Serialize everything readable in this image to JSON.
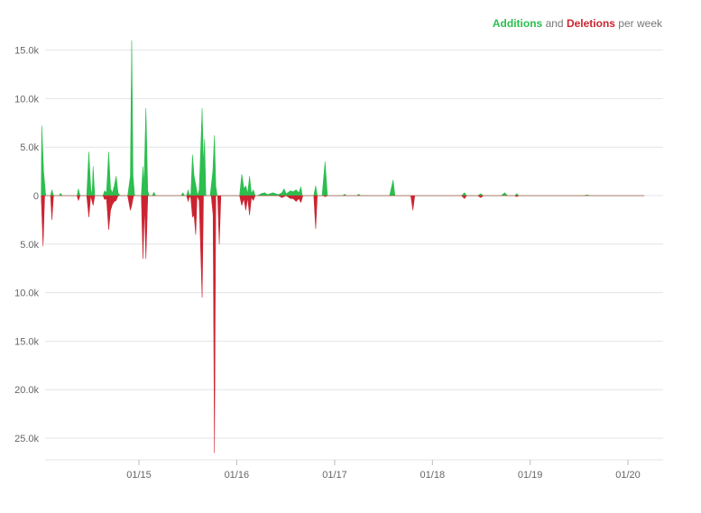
{
  "legend": {
    "additions_label": "Additions",
    "and_label": "and",
    "deletions_label": "Deletions",
    "suffix_label": "per week"
  },
  "colors": {
    "additions": "#2cbe4e",
    "deletions": "#cb2431",
    "grid": "#e1e4e8",
    "tick_text": "#666666"
  },
  "chart_data": {
    "type": "area",
    "title": "",
    "xlabel": "",
    "ylabel": "",
    "grid": true,
    "legend_position": "top-right",
    "x_range": [
      "2014-01-01",
      "2020-03-01"
    ],
    "y_range": [
      -27000,
      16000
    ],
    "y_ticks": [
      {
        "value": 15000,
        "label": "15.0k"
      },
      {
        "value": 10000,
        "label": "10.0k"
      },
      {
        "value": 5000,
        "label": "5.0k"
      },
      {
        "value": 0,
        "label": "0"
      },
      {
        "value": -5000,
        "label": "5.0k"
      },
      {
        "value": -10000,
        "label": "10.0k"
      },
      {
        "value": -15000,
        "label": "15.0k"
      },
      {
        "value": -20000,
        "label": "20.0k"
      },
      {
        "value": -25000,
        "label": "25.0k"
      }
    ],
    "x_ticks": [
      {
        "value": "2015-01-01",
        "label": "01/15"
      },
      {
        "value": "2016-01-01",
        "label": "01/16"
      },
      {
        "value": "2017-01-01",
        "label": "01/17"
      },
      {
        "value": "2018-01-01",
        "label": "01/18"
      },
      {
        "value": "2019-01-01",
        "label": "01/19"
      },
      {
        "value": "2020-01-01",
        "label": "01/20"
      }
    ],
    "series": [
      {
        "name": "Additions",
        "points": [
          [
            "2014-01-01",
            0
          ],
          [
            "2014-01-03",
            7200
          ],
          [
            "2014-01-10",
            2500
          ],
          [
            "2014-01-18",
            0
          ],
          [
            "2014-02-05",
            0
          ],
          [
            "2014-02-10",
            600
          ],
          [
            "2014-02-16",
            0
          ],
          [
            "2014-03-10",
            0
          ],
          [
            "2014-03-14",
            250
          ],
          [
            "2014-03-20",
            0
          ],
          [
            "2014-05-15",
            0
          ],
          [
            "2014-05-20",
            700
          ],
          [
            "2014-05-26",
            0
          ],
          [
            "2014-06-20",
            0
          ],
          [
            "2014-06-28",
            4500
          ],
          [
            "2014-07-05",
            800
          ],
          [
            "2014-07-10",
            0
          ],
          [
            "2014-07-14",
            3000
          ],
          [
            "2014-07-20",
            0
          ],
          [
            "2014-08-20",
            0
          ],
          [
            "2014-08-26",
            500
          ],
          [
            "2014-09-02",
            300
          ],
          [
            "2014-09-10",
            4500
          ],
          [
            "2014-09-17",
            700
          ],
          [
            "2014-09-24",
            300
          ],
          [
            "2014-10-01",
            1000
          ],
          [
            "2014-10-08",
            2000
          ],
          [
            "2014-10-15",
            300
          ],
          [
            "2014-10-22",
            0
          ],
          [
            "2014-11-20",
            0
          ],
          [
            "2014-11-30",
            2000
          ],
          [
            "2014-12-05",
            16000
          ],
          [
            "2014-12-10",
            2000
          ],
          [
            "2014-12-16",
            0
          ],
          [
            "2015-01-10",
            0
          ],
          [
            "2015-01-16",
            3000
          ],
          [
            "2015-01-20",
            1000
          ],
          [
            "2015-01-27",
            9000
          ],
          [
            "2015-02-03",
            500
          ],
          [
            "2015-02-08",
            0
          ],
          [
            "2015-02-20",
            0
          ],
          [
            "2015-02-26",
            350
          ],
          [
            "2015-03-04",
            0
          ],
          [
            "2015-06-08",
            0
          ],
          [
            "2015-06-14",
            300
          ],
          [
            "2015-06-20",
            0
          ],
          [
            "2015-06-28",
            0
          ],
          [
            "2015-07-04",
            600
          ],
          [
            "2015-07-09",
            0
          ],
          [
            "2015-07-14",
            200
          ],
          [
            "2015-07-20",
            4200
          ],
          [
            "2015-07-26",
            2000
          ],
          [
            "2015-08-02",
            1000
          ],
          [
            "2015-08-08",
            0
          ],
          [
            "2015-08-14",
            600
          ],
          [
            "2015-08-20",
            5000
          ],
          [
            "2015-08-25",
            9000
          ],
          [
            "2015-08-30",
            3000
          ],
          [
            "2015-09-03",
            5800
          ],
          [
            "2015-09-08",
            0
          ],
          [
            "2015-09-24",
            0
          ],
          [
            "2015-10-04",
            2500
          ],
          [
            "2015-10-10",
            6200
          ],
          [
            "2015-10-15",
            1000
          ],
          [
            "2015-10-20",
            0
          ],
          [
            "2016-01-12",
            0
          ],
          [
            "2016-01-20",
            2200
          ],
          [
            "2016-01-28",
            700
          ],
          [
            "2016-02-04",
            1000
          ],
          [
            "2016-02-11",
            200
          ],
          [
            "2016-02-18",
            2000
          ],
          [
            "2016-02-25",
            200
          ],
          [
            "2016-03-03",
            600
          ],
          [
            "2016-03-10",
            0
          ],
          [
            "2016-03-20",
            0
          ],
          [
            "2016-04-01",
            200
          ],
          [
            "2016-04-15",
            300
          ],
          [
            "2016-04-25",
            100
          ],
          [
            "2016-05-15",
            300
          ],
          [
            "2016-06-05",
            100
          ],
          [
            "2016-06-18",
            300
          ],
          [
            "2016-06-26",
            700
          ],
          [
            "2016-07-04",
            200
          ],
          [
            "2016-07-20",
            500
          ],
          [
            "2016-07-30",
            400
          ],
          [
            "2016-08-10",
            600
          ],
          [
            "2016-08-20",
            300
          ],
          [
            "2016-08-28",
            900
          ],
          [
            "2016-09-02",
            0
          ],
          [
            "2016-10-15",
            0
          ],
          [
            "2016-10-22",
            1000
          ],
          [
            "2016-10-28",
            0
          ],
          [
            "2016-11-15",
            0
          ],
          [
            "2016-11-26",
            3500
          ],
          [
            "2016-12-05",
            0
          ],
          [
            "2017-02-01",
            0
          ],
          [
            "2017-02-07",
            150
          ],
          [
            "2017-02-13",
            0
          ],
          [
            "2017-03-25",
            0
          ],
          [
            "2017-04-01",
            150
          ],
          [
            "2017-04-07",
            0
          ],
          [
            "2017-07-25",
            0
          ],
          [
            "2017-08-07",
            1600
          ],
          [
            "2017-08-14",
            0
          ],
          [
            "2018-04-20",
            0
          ],
          [
            "2018-05-01",
            300
          ],
          [
            "2018-05-08",
            0
          ],
          [
            "2018-06-20",
            0
          ],
          [
            "2018-06-30",
            200
          ],
          [
            "2018-07-10",
            0
          ],
          [
            "2018-09-15",
            0
          ],
          [
            "2018-09-28",
            300
          ],
          [
            "2018-10-08",
            0
          ],
          [
            "2018-11-05",
            0
          ],
          [
            "2018-11-12",
            200
          ],
          [
            "2018-11-19",
            0
          ],
          [
            "2019-07-20",
            0
          ],
          [
            "2019-08-01",
            80
          ],
          [
            "2019-08-12",
            0
          ],
          [
            "2020-03-01",
            0
          ]
        ]
      },
      {
        "name": "Deletions",
        "points": [
          [
            "2014-01-01",
            0
          ],
          [
            "2014-01-08",
            -5200
          ],
          [
            "2014-01-14",
            0
          ],
          [
            "2014-02-05",
            0
          ],
          [
            "2014-02-10",
            -2500
          ],
          [
            "2014-02-16",
            0
          ],
          [
            "2014-05-15",
            0
          ],
          [
            "2014-05-20",
            -500
          ],
          [
            "2014-05-26",
            0
          ],
          [
            "2014-06-20",
            0
          ],
          [
            "2014-06-28",
            -2200
          ],
          [
            "2014-07-05",
            0
          ],
          [
            "2014-07-14",
            -1000
          ],
          [
            "2014-07-20",
            0
          ],
          [
            "2014-08-20",
            0
          ],
          [
            "2014-08-26",
            -400
          ],
          [
            "2014-09-02",
            -300
          ],
          [
            "2014-09-10",
            -3500
          ],
          [
            "2014-09-17",
            -1500
          ],
          [
            "2014-09-24",
            -900
          ],
          [
            "2014-10-01",
            -600
          ],
          [
            "2014-10-08",
            -500
          ],
          [
            "2014-10-15",
            0
          ],
          [
            "2014-11-20",
            0
          ],
          [
            "2014-11-30",
            -1500
          ],
          [
            "2014-12-05",
            -1000
          ],
          [
            "2014-12-12",
            0
          ],
          [
            "2015-01-10",
            0
          ],
          [
            "2015-01-16",
            -6500
          ],
          [
            "2015-01-22",
            -1000
          ],
          [
            "2015-01-27",
            -6500
          ],
          [
            "2015-02-03",
            0
          ],
          [
            "2015-06-28",
            0
          ],
          [
            "2015-07-04",
            -600
          ],
          [
            "2015-07-09",
            0
          ],
          [
            "2015-07-14",
            -300
          ],
          [
            "2015-07-20",
            -2200
          ],
          [
            "2015-07-26",
            -2000
          ],
          [
            "2015-08-01",
            -4000
          ],
          [
            "2015-08-06",
            0
          ],
          [
            "2015-08-14",
            -500
          ],
          [
            "2015-08-25",
            -10500
          ],
          [
            "2015-08-30",
            0
          ],
          [
            "2015-09-28",
            0
          ],
          [
            "2015-10-05",
            -2000
          ],
          [
            "2015-10-10",
            -26500
          ],
          [
            "2015-10-15",
            0
          ],
          [
            "2015-10-22",
            0
          ],
          [
            "2015-10-28",
            -5000
          ],
          [
            "2015-11-03",
            0
          ],
          [
            "2016-01-12",
            0
          ],
          [
            "2016-01-20",
            -1000
          ],
          [
            "2016-01-28",
            -300
          ],
          [
            "2016-02-04",
            -1500
          ],
          [
            "2016-02-11",
            -200
          ],
          [
            "2016-02-18",
            -2000
          ],
          [
            "2016-02-25",
            -200
          ],
          [
            "2016-03-03",
            -500
          ],
          [
            "2016-03-10",
            0
          ],
          [
            "2016-06-05",
            0
          ],
          [
            "2016-06-18",
            -200
          ],
          [
            "2016-07-04",
            0
          ],
          [
            "2016-07-20",
            -300
          ],
          [
            "2016-07-30",
            -300
          ],
          [
            "2016-08-10",
            -600
          ],
          [
            "2016-08-20",
            -300
          ],
          [
            "2016-08-28",
            -700
          ],
          [
            "2016-09-04",
            0
          ],
          [
            "2016-10-15",
            0
          ],
          [
            "2016-10-22",
            -3400
          ],
          [
            "2016-10-28",
            0
          ],
          [
            "2016-11-20",
            0
          ],
          [
            "2016-11-26",
            -100
          ],
          [
            "2016-12-05",
            0
          ],
          [
            "2017-10-12",
            0
          ],
          [
            "2017-10-20",
            -1500
          ],
          [
            "2017-10-27",
            0
          ],
          [
            "2018-04-20",
            0
          ],
          [
            "2018-05-01",
            -300
          ],
          [
            "2018-05-08",
            0
          ],
          [
            "2018-06-20",
            0
          ],
          [
            "2018-06-30",
            -200
          ],
          [
            "2018-07-10",
            0
          ],
          [
            "2018-11-05",
            0
          ],
          [
            "2018-11-12",
            -100
          ],
          [
            "2018-11-19",
            0
          ],
          [
            "2020-03-01",
            0
          ]
        ]
      }
    ]
  }
}
